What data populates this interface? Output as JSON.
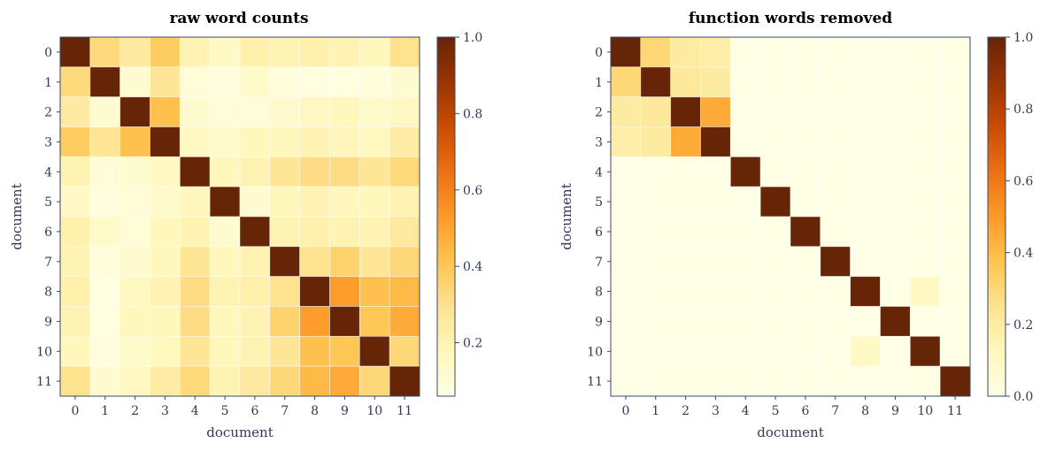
{
  "chart_data": [
    {
      "type": "heatmap",
      "title": "raw word counts",
      "xlabel": "document",
      "ylabel": "document",
      "x_ticks": [
        "0",
        "1",
        "2",
        "3",
        "4",
        "5",
        "6",
        "7",
        "8",
        "9",
        "10",
        "11"
      ],
      "y_ticks": [
        "0",
        "1",
        "2",
        "3",
        "4",
        "5",
        "6",
        "7",
        "8",
        "9",
        "10",
        "11"
      ],
      "colorbar": {
        "min": 0.06,
        "max": 1.0,
        "ticks": [
          0.2,
          0.4,
          0.6,
          0.8,
          1.0
        ],
        "tick_labels": [
          "0.2",
          "0.4",
          "0.6",
          "0.8",
          "1.0"
        ]
      },
      "colormap": [
        "#ffffe5",
        "#fff7bc",
        "#fee391",
        "#fec44f",
        "#fe9929",
        "#ec7014",
        "#cc4c02",
        "#993404",
        "#662506"
      ],
      "grid": true,
      "values": [
        [
          1.0,
          0.33,
          0.25,
          0.38,
          0.2,
          0.15,
          0.22,
          0.2,
          0.22,
          0.2,
          0.18,
          0.3
        ],
        [
          0.33,
          1.0,
          0.12,
          0.28,
          0.1,
          0.09,
          0.14,
          0.09,
          0.08,
          0.08,
          0.09,
          0.12
        ],
        [
          0.25,
          0.12,
          1.0,
          0.42,
          0.12,
          0.1,
          0.1,
          0.13,
          0.16,
          0.18,
          0.14,
          0.16
        ],
        [
          0.38,
          0.28,
          0.42,
          1.0,
          0.16,
          0.14,
          0.18,
          0.18,
          0.2,
          0.18,
          0.17,
          0.24
        ],
        [
          0.2,
          0.1,
          0.12,
          0.16,
          1.0,
          0.18,
          0.2,
          0.28,
          0.32,
          0.32,
          0.28,
          0.33
        ],
        [
          0.15,
          0.09,
          0.1,
          0.14,
          0.18,
          1.0,
          0.12,
          0.18,
          0.2,
          0.18,
          0.18,
          0.2
        ],
        [
          0.22,
          0.14,
          0.1,
          0.18,
          0.2,
          0.12,
          1.0,
          0.2,
          0.22,
          0.2,
          0.2,
          0.26
        ],
        [
          0.2,
          0.09,
          0.13,
          0.18,
          0.28,
          0.18,
          0.2,
          1.0,
          0.3,
          0.36,
          0.28,
          0.34
        ],
        [
          0.22,
          0.08,
          0.16,
          0.2,
          0.32,
          0.2,
          0.22,
          0.3,
          1.0,
          0.52,
          0.42,
          0.44
        ],
        [
          0.2,
          0.08,
          0.18,
          0.18,
          0.32,
          0.18,
          0.2,
          0.36,
          0.52,
          1.0,
          0.4,
          0.48
        ],
        [
          0.18,
          0.09,
          0.14,
          0.17,
          0.28,
          0.18,
          0.2,
          0.28,
          0.42,
          0.4,
          1.0,
          0.34
        ],
        [
          0.3,
          0.12,
          0.16,
          0.24,
          0.33,
          0.2,
          0.26,
          0.34,
          0.44,
          0.48,
          0.34,
          1.0
        ]
      ]
    },
    {
      "type": "heatmap",
      "title": "function words removed",
      "xlabel": "document",
      "ylabel": "document",
      "x_ticks": [
        "0",
        "1",
        "2",
        "3",
        "4",
        "5",
        "6",
        "7",
        "8",
        "9",
        "10",
        "11"
      ],
      "y_ticks": [
        "0",
        "1",
        "2",
        "3",
        "4",
        "5",
        "6",
        "7",
        "8",
        "9",
        "10",
        "11"
      ],
      "colorbar": {
        "min": 0.0,
        "max": 1.0,
        "ticks": [
          0.0,
          0.2,
          0.4,
          0.6,
          0.8,
          1.0
        ],
        "tick_labels": [
          "0.0",
          "0.2",
          "0.4",
          "0.6",
          "0.8",
          "1.0"
        ]
      },
      "colormap": [
        "#ffffe5",
        "#fff7bc",
        "#fee391",
        "#fec44f",
        "#fe9929",
        "#ec7014",
        "#cc4c02",
        "#993404",
        "#662506"
      ],
      "grid": true,
      "values": [
        [
          1.0,
          0.3,
          0.2,
          0.18,
          0,
          0,
          0,
          0,
          0,
          0,
          0,
          0
        ],
        [
          0.3,
          1.0,
          0.22,
          0.2,
          0,
          0,
          0,
          0,
          0,
          0,
          0,
          0
        ],
        [
          0.2,
          0.22,
          1.0,
          0.45,
          0,
          0,
          0,
          0,
          0,
          0,
          0,
          0
        ],
        [
          0.18,
          0.2,
          0.45,
          1.0,
          0,
          0,
          0,
          0,
          0,
          0,
          0,
          0
        ],
        [
          0,
          0,
          0,
          0,
          1.0,
          0,
          0,
          0,
          0,
          0,
          0,
          0
        ],
        [
          0,
          0,
          0,
          0,
          0,
          1.0,
          0,
          0,
          0,
          0,
          0,
          0
        ],
        [
          0,
          0,
          0,
          0,
          0,
          0,
          1.0,
          0,
          0,
          0,
          0,
          0
        ],
        [
          0,
          0,
          0,
          0,
          0,
          0,
          0,
          1.0,
          0,
          0,
          0,
          0
        ],
        [
          0,
          0,
          0,
          0,
          0,
          0,
          0,
          0,
          1.0,
          0,
          0.1,
          0
        ],
        [
          0,
          0,
          0,
          0,
          0,
          0,
          0,
          0,
          0,
          1.0,
          0,
          0
        ],
        [
          0,
          0,
          0,
          0,
          0,
          0,
          0,
          0,
          0.1,
          0,
          1.0,
          0
        ],
        [
          0,
          0,
          0,
          0,
          0,
          0,
          0,
          0,
          0,
          0,
          0,
          1.0
        ]
      ]
    }
  ]
}
